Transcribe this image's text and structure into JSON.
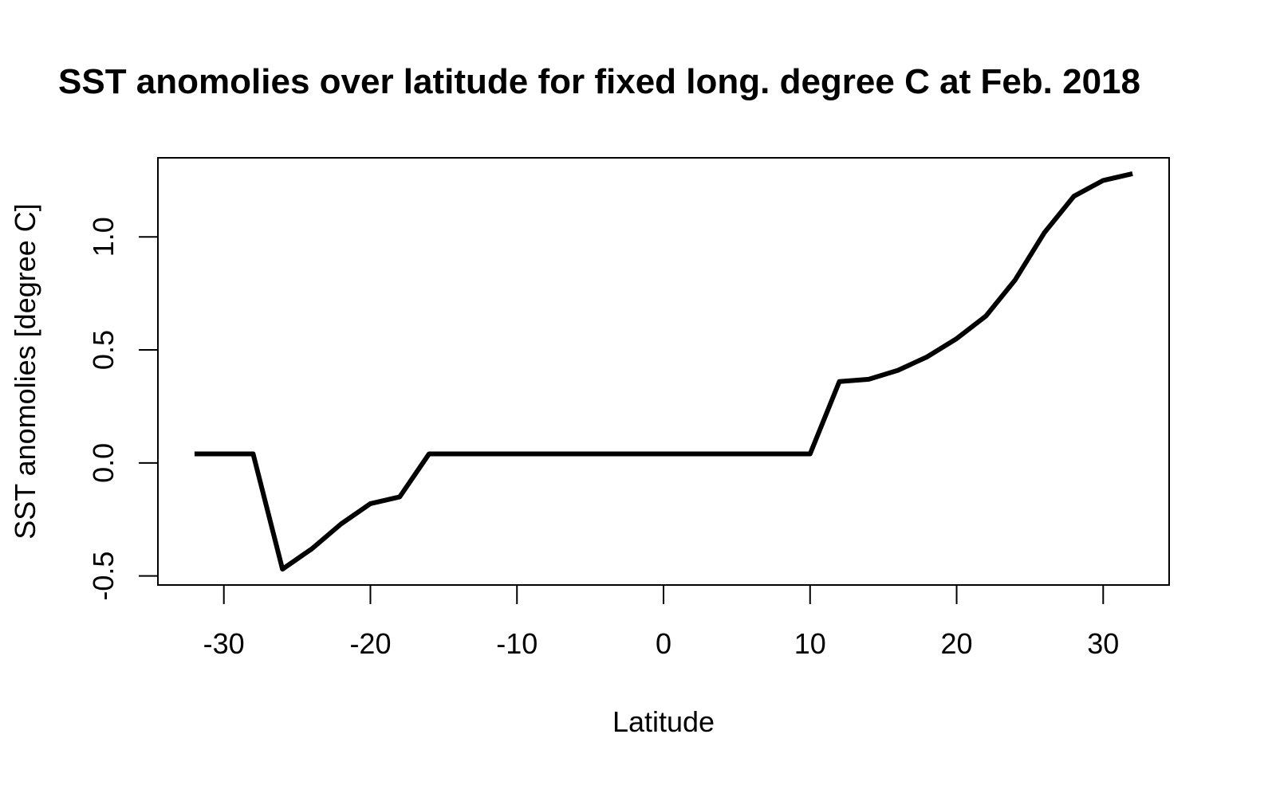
{
  "chart_data": {
    "type": "line",
    "title": "SST anomolies over latitude for fixed long. degree C at Feb. 2018",
    "xlabel": "Latitude",
    "ylabel": "SST anomolies [degree C]",
    "xlim": [
      -34.5,
      34.5
    ],
    "ylim": [
      -0.54,
      1.35
    ],
    "x_ticks": [
      -30,
      -20,
      -10,
      0,
      10,
      20,
      30
    ],
    "y_ticks": [
      -0.5,
      0.0,
      0.5,
      1.0
    ],
    "x_tick_labels": [
      "-30",
      "-20",
      "-10",
      "0",
      "10",
      "20",
      "30"
    ],
    "y_tick_labels": [
      "-0.5",
      "0.0",
      "0.5",
      "1.0"
    ],
    "grid": false,
    "line_color": "#000000",
    "series": [
      {
        "x": [
          -32,
          -30,
          -28,
          -26,
          -24,
          -22,
          -20,
          -18,
          -16,
          -14,
          -12,
          -10,
          -8,
          -6,
          -4,
          -2,
          0,
          2,
          4,
          6,
          8,
          10,
          12,
          14,
          16,
          18,
          20,
          22,
          24,
          26,
          28,
          30,
          32
        ],
        "y": [
          0.04,
          0.04,
          0.04,
          -0.47,
          -0.38,
          -0.27,
          -0.18,
          -0.15,
          0.04,
          0.04,
          0.04,
          0.04,
          0.04,
          0.04,
          0.04,
          0.04,
          0.04,
          0.04,
          0.04,
          0.04,
          0.04,
          0.04,
          0.36,
          0.37,
          0.41,
          0.47,
          0.55,
          0.65,
          0.81,
          1.02,
          1.18,
          1.25,
          1.28
        ]
      }
    ]
  }
}
